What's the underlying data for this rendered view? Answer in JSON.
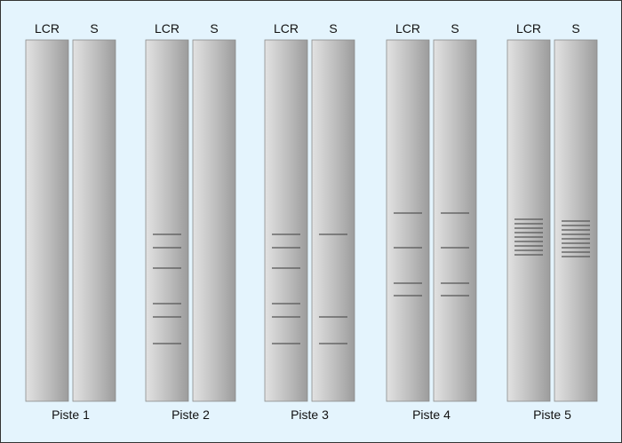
{
  "groups": [
    {
      "label": "Piste 1",
      "lanes": [
        {
          "header": "LCR",
          "bands": []
        },
        {
          "header": "S",
          "bands": []
        }
      ]
    },
    {
      "label": "Piste 2",
      "lanes": [
        {
          "header": "LCR",
          "bands": [
            263,
            278,
            301,
            341,
            356,
            386
          ]
        },
        {
          "header": "S",
          "bands": []
        }
      ]
    },
    {
      "label": "Piste 3",
      "lanes": [
        {
          "header": "LCR",
          "bands": [
            263,
            278,
            301,
            341,
            356,
            386
          ]
        },
        {
          "header": "S",
          "bands": [
            263,
            356,
            386
          ]
        }
      ]
    },
    {
      "label": "Piste 4",
      "lanes": [
        {
          "header": "LCR",
          "bands": [
            239,
            278,
            318,
            332
          ]
        },
        {
          "header": "S",
          "bands": [
            239,
            278,
            318,
            332
          ]
        }
      ]
    },
    {
      "label": "Piste 5",
      "lanes": [
        {
          "header": "LCR",
          "bands": [
            246,
            251,
            256,
            261,
            266,
            271,
            276,
            281,
            286
          ]
        },
        {
          "header": "S",
          "bands": [
            248,
            253,
            258,
            263,
            268,
            273,
            278,
            283,
            288
          ]
        }
      ]
    }
  ],
  "colors": {
    "background": "#e4f4fd",
    "lane_light": "#e2e2e2",
    "lane_dark": "#9c9c9c",
    "band": "#555555"
  }
}
